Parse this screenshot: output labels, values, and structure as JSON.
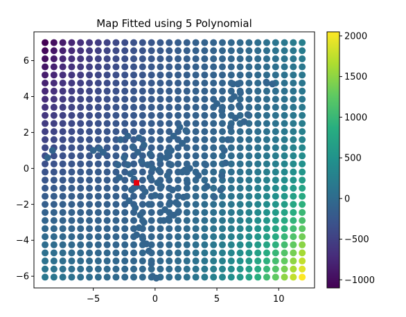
{
  "chart_data": {
    "type": "scatter",
    "title": "Map Fitted using 5 Polynomial",
    "xlabel": "",
    "ylabel": "",
    "xlim": [
      -9.8,
      12.9
    ],
    "ylim": [
      -6.65,
      7.6
    ],
    "x_ticks": [
      -5,
      0,
      5,
      10
    ],
    "x_tick_labels": [
      "−5",
      "0",
      "5",
      "10"
    ],
    "y_ticks": [
      -6,
      -4,
      -2,
      0,
      2,
      4,
      6
    ],
    "y_tick_labels": [
      "−6",
      "−4",
      "−2",
      "0",
      "2",
      "4",
      "6"
    ],
    "grid": false,
    "colormap": "viridis",
    "grid_points": {
      "x_start": -8.9,
      "x_end": 11.9,
      "x_count": 30,
      "y_start": -6.05,
      "y_end": 7.0,
      "y_count": 30
    },
    "value_model": {
      "form": "corner-weighted surface",
      "value_at_center": -160,
      "value_bottom_right": 2050,
      "value_top_right": 250,
      "value_top_left": -1100,
      "value_bottom_left": 150
    },
    "trajectory_points": [
      [
        -8.7,
        0.6
      ],
      [
        -8.3,
        1.0
      ],
      [
        -5.0,
        1.0
      ],
      [
        -4.5,
        1.1
      ],
      [
        -4.2,
        0.9
      ],
      [
        -2.8,
        1.6
      ],
      [
        -2.2,
        1.8
      ],
      [
        -1.3,
        1.7
      ],
      [
        -0.9,
        1.3
      ],
      [
        -0.4,
        0.8
      ],
      [
        0.4,
        0.5
      ],
      [
        1.0,
        0.9
      ],
      [
        1.5,
        1.8
      ],
      [
        2.0,
        2.3
      ],
      [
        2.5,
        2.1
      ],
      [
        2.2,
        1.4
      ],
      [
        1.3,
        1.0
      ],
      [
        0.9,
        0.6
      ],
      [
        1.3,
        0.2
      ],
      [
        2.2,
        -0.2
      ],
      [
        2.8,
        0.0
      ],
      [
        3.5,
        -0.4
      ],
      [
        4.1,
        0.2
      ],
      [
        4.2,
        -1.0
      ],
      [
        4.8,
        -1.6
      ],
      [
        5.3,
        -1.2
      ],
      [
        5.4,
        -0.4
      ],
      [
        5.7,
        0.3
      ],
      [
        5.6,
        1.0
      ],
      [
        5.9,
        1.6
      ],
      [
        6.1,
        2.3
      ],
      [
        6.5,
        2.8
      ],
      [
        7.2,
        2.6
      ],
      [
        7.5,
        3.0
      ],
      [
        6.8,
        3.5
      ],
      [
        6.4,
        4.0
      ],
      [
        6.3,
        4.7
      ],
      [
        6.7,
        4.7
      ],
      [
        6.9,
        4.2
      ],
      [
        5.4,
        3.2
      ],
      [
        5.0,
        3.6
      ],
      [
        9.0,
        4.8
      ],
      [
        9.5,
        4.7
      ],
      [
        -2.5,
        0.6
      ],
      [
        -2.2,
        0.2
      ],
      [
        -2.0,
        -0.3
      ],
      [
        -1.7,
        -0.6
      ],
      [
        -1.5,
        -1.0
      ],
      [
        -1.9,
        -1.2
      ],
      [
        -2.1,
        -1.8
      ],
      [
        -1.6,
        -2.2
      ],
      [
        -1.2,
        -2.6
      ],
      [
        -0.9,
        -3.0
      ],
      [
        -1.3,
        -3.3
      ],
      [
        -1.5,
        -3.7
      ],
      [
        -1.0,
        -3.9
      ],
      [
        -0.7,
        -4.2
      ],
      [
        -0.5,
        -4.6
      ],
      [
        -0.3,
        -5.3
      ],
      [
        -0.2,
        -6.0
      ],
      [
        0.1,
        -6.1
      ],
      [
        -0.5,
        -2.0
      ],
      [
        0.0,
        -1.5
      ],
      [
        0.5,
        -1.0
      ],
      [
        1.0,
        -0.4
      ],
      [
        1.4,
        -1.2
      ],
      [
        1.2,
        -1.9
      ],
      [
        0.8,
        -2.3
      ],
      [
        1.5,
        -2.6
      ],
      [
        1.9,
        -2.4
      ],
      [
        1.7,
        -1.9
      ],
      [
        2.3,
        -1.6
      ],
      [
        2.6,
        -0.8
      ],
      [
        2.4,
        -0.1
      ],
      [
        0.2,
        -0.8
      ],
      [
        -0.4,
        -0.5
      ],
      [
        -0.8,
        -1.3
      ],
      [
        -0.2,
        0.0
      ],
      [
        0.3,
        -0.1
      ],
      [
        -1.1,
        0.4
      ],
      [
        -1.4,
        0.9
      ],
      [
        -1.8,
        1.2
      ],
      [
        -3.0,
        0.2
      ],
      [
        -2.9,
        -0.5
      ],
      [
        -0.6,
        0.2
      ],
      [
        0.7,
        -2.9
      ],
      [
        1.1,
        -2.8
      ]
    ],
    "trajectory_value": -90,
    "marker": {
      "x": -1.5,
      "y": -0.8,
      "color": "#e8000b",
      "shape": "square"
    },
    "colorbar": {
      "min": -1100,
      "max": 2050,
      "ticks": [
        -1000,
        -500,
        0,
        500,
        1000,
        1500,
        2000
      ],
      "tick_labels": [
        "−1000",
        "−500",
        "0",
        "500",
        "1000",
        "1500",
        "2000"
      ]
    }
  }
}
